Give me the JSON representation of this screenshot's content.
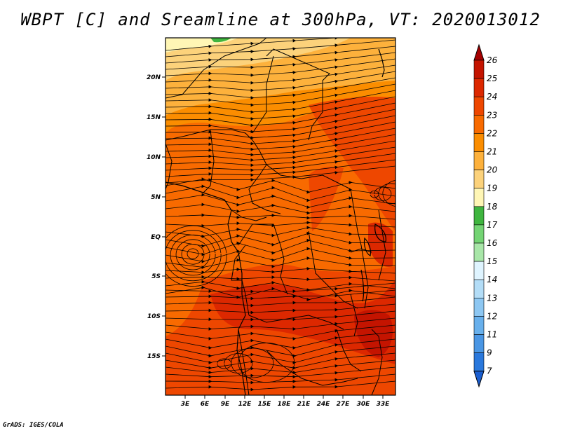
{
  "title": "WBPT [C] and Sreamline at 300hPa, VT: 2020013012",
  "credit": "GrADS: IGES/COLA",
  "map": {
    "lat_labels": [
      "20N",
      "15N",
      "10N",
      "5N",
      "EQ",
      "5S",
      "10S",
      "15S"
    ],
    "lon_labels": [
      "3E",
      "6E",
      "9E",
      "12E",
      "15E",
      "18E",
      "21E",
      "24E",
      "27E",
      "30E",
      "33E"
    ]
  },
  "colorbar": {
    "levels": [
      "26",
      "25",
      "24",
      "23",
      "22",
      "21",
      "20",
      "19",
      "18",
      "17",
      "16",
      "15",
      "14",
      "13",
      "12",
      "11",
      "9",
      "7"
    ],
    "colors": [
      "#a50000",
      "#c41400",
      "#dc2800",
      "#ee4700",
      "#f86a00",
      "#fb8d00",
      "#fdb13c",
      "#fcd27b",
      "#fff6b5",
      "#3fb53f",
      "#74d474",
      "#a8e6a8",
      "#dff4ff",
      "#b3ddf7",
      "#8dc7f2",
      "#68b0ec",
      "#4a96e4",
      "#2a78dc",
      "#1a5ed0"
    ]
  }
}
